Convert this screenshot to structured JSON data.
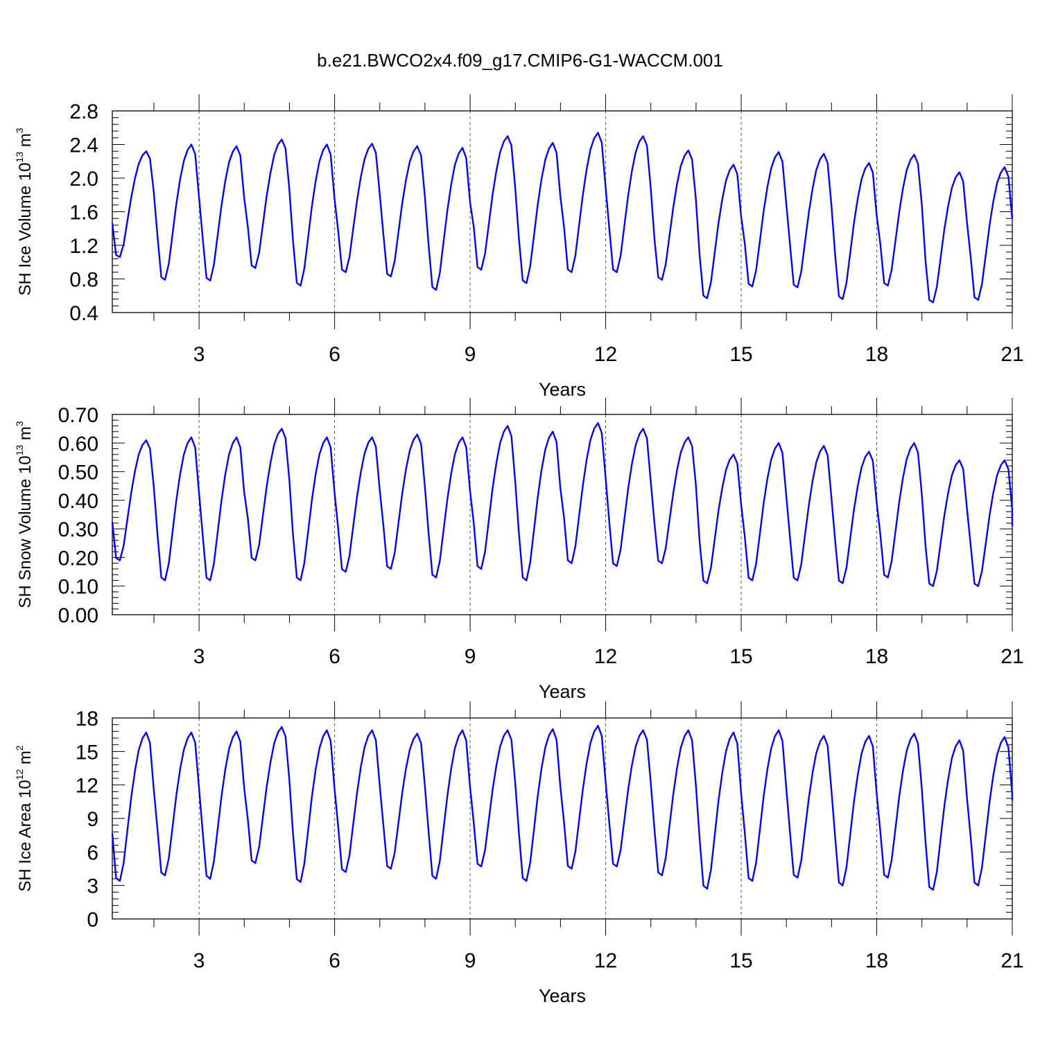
{
  "title": "b.e21.BWCO2x4.f09_g17.CMIP6-G1-WACCM.001",
  "colors": {
    "line": "#0000ff",
    "axes": "#000000",
    "grid": "#555555"
  },
  "chart_data": [
    {
      "type": "line",
      "xlabel": "Years",
      "ylabel": {
        "main": "SH Ice Volume 10",
        "exp": "13",
        "unit": " m",
        "unit_exp": "3"
      },
      "xlim": [
        1.08,
        21.0
      ],
      "ylim": [
        0.4,
        2.8
      ],
      "yticks": [
        0.4,
        0.8,
        1.2,
        1.6,
        2.0,
        2.4,
        2.8
      ],
      "ytick_labels": [
        "0.4",
        "0.8",
        "1.2",
        "1.6",
        "2.0",
        "2.4",
        "2.8"
      ],
      "xticks": [
        3,
        6,
        9,
        12,
        15,
        18,
        21
      ],
      "xtick_labels": [
        "3",
        "6",
        "9",
        "12",
        "15",
        "18",
        "21"
      ],
      "series": [
        {
          "name": "SH Ice Volume",
          "annual": [
            {
              "min": 1.06,
              "max": 2.32
            },
            {
              "min": 0.79,
              "max": 2.4
            },
            {
              "min": 0.78,
              "max": 2.38
            },
            {
              "min": 0.93,
              "max": 2.46
            },
            {
              "min": 0.72,
              "max": 2.4
            },
            {
              "min": 0.88,
              "max": 2.41
            },
            {
              "min": 0.83,
              "max": 2.38
            },
            {
              "min": 0.67,
              "max": 2.36
            },
            {
              "min": 0.91,
              "max": 2.5
            },
            {
              "min": 0.75,
              "max": 2.42
            },
            {
              "min": 0.88,
              "max": 2.54
            },
            {
              "min": 0.88,
              "max": 2.5
            },
            {
              "min": 0.79,
              "max": 2.33
            },
            {
              "min": 0.57,
              "max": 2.16
            },
            {
              "min": 0.71,
              "max": 2.31
            },
            {
              "min": 0.7,
              "max": 2.29
            },
            {
              "min": 0.56,
              "max": 2.18
            },
            {
              "min": 0.72,
              "max": 2.28
            },
            {
              "min": 0.52,
              "max": 2.07
            },
            {
              "min": 0.55,
              "max": 2.13
            }
          ],
          "end_value": 1.56
        }
      ]
    },
    {
      "type": "line",
      "xlabel": "Years",
      "ylabel": {
        "main": "SH Snow Volume 10",
        "exp": "13",
        "unit": " m",
        "unit_exp": "3"
      },
      "xlim": [
        1.08,
        21.0
      ],
      "ylim": [
        0.0,
        0.7
      ],
      "yticks": [
        0.0,
        0.1,
        0.2,
        0.3,
        0.4,
        0.5,
        0.6,
        0.7
      ],
      "ytick_labels": [
        "0.00",
        "0.10",
        "0.20",
        "0.30",
        "0.40",
        "0.50",
        "0.60",
        "0.70"
      ],
      "xticks": [
        3,
        6,
        9,
        12,
        15,
        18,
        21
      ],
      "xtick_labels": [
        "3",
        "6",
        "9",
        "12",
        "15",
        "18",
        "21"
      ],
      "series": [
        {
          "name": "SH Snow Volume",
          "annual": [
            {
              "min": 0.19,
              "max": 0.61
            },
            {
              "min": 0.12,
              "max": 0.62
            },
            {
              "min": 0.12,
              "max": 0.62
            },
            {
              "min": 0.19,
              "max": 0.65
            },
            {
              "min": 0.12,
              "max": 0.62
            },
            {
              "min": 0.15,
              "max": 0.62
            },
            {
              "min": 0.16,
              "max": 0.63
            },
            {
              "min": 0.13,
              "max": 0.62
            },
            {
              "min": 0.16,
              "max": 0.66
            },
            {
              "min": 0.12,
              "max": 0.64
            },
            {
              "min": 0.18,
              "max": 0.67
            },
            {
              "min": 0.17,
              "max": 0.65
            },
            {
              "min": 0.18,
              "max": 0.62
            },
            {
              "min": 0.11,
              "max": 0.56
            },
            {
              "min": 0.12,
              "max": 0.6
            },
            {
              "min": 0.12,
              "max": 0.59
            },
            {
              "min": 0.11,
              "max": 0.57
            },
            {
              "min": 0.13,
              "max": 0.6
            },
            {
              "min": 0.1,
              "max": 0.54
            },
            {
              "min": 0.1,
              "max": 0.54
            }
          ],
          "end_value": 0.31
        }
      ]
    },
    {
      "type": "line",
      "xlabel": "Years",
      "ylabel": {
        "main": "SH Ice Area 10",
        "exp": "12",
        "unit": " m",
        "unit_exp": "2"
      },
      "xlim": [
        1.08,
        21.0
      ],
      "ylim": [
        0,
        18
      ],
      "yticks": [
        0,
        3,
        6,
        9,
        12,
        15,
        18
      ],
      "ytick_labels": [
        "0",
        "3",
        "6",
        "9",
        "12",
        "15",
        "18"
      ],
      "xticks": [
        3,
        6,
        9,
        12,
        15,
        18,
        21
      ],
      "xtick_labels": [
        "3",
        "6",
        "9",
        "12",
        "15",
        "18",
        "21"
      ],
      "series": [
        {
          "name": "SH Ice Area",
          "annual": [
            {
              "min": 3.4,
              "max": 16.7
            },
            {
              "min": 3.9,
              "max": 16.7
            },
            {
              "min": 3.6,
              "max": 16.8
            },
            {
              "min": 5.0,
              "max": 17.2
            },
            {
              "min": 3.3,
              "max": 16.9
            },
            {
              "min": 4.2,
              "max": 16.9
            },
            {
              "min": 4.5,
              "max": 16.6
            },
            {
              "min": 3.6,
              "max": 16.9
            },
            {
              "min": 4.7,
              "max": 16.9
            },
            {
              "min": 3.4,
              "max": 17.0
            },
            {
              "min": 4.5,
              "max": 17.3
            },
            {
              "min": 4.7,
              "max": 16.9
            },
            {
              "min": 3.9,
              "max": 16.9
            },
            {
              "min": 2.7,
              "max": 16.7
            },
            {
              "min": 3.4,
              "max": 16.9
            },
            {
              "min": 3.7,
              "max": 16.4
            },
            {
              "min": 3.0,
              "max": 16.4
            },
            {
              "min": 3.7,
              "max": 16.6
            },
            {
              "min": 2.6,
              "max": 16.0
            },
            {
              "min": 3.0,
              "max": 16.3
            }
          ],
          "end_value": 10.6
        }
      ]
    }
  ]
}
